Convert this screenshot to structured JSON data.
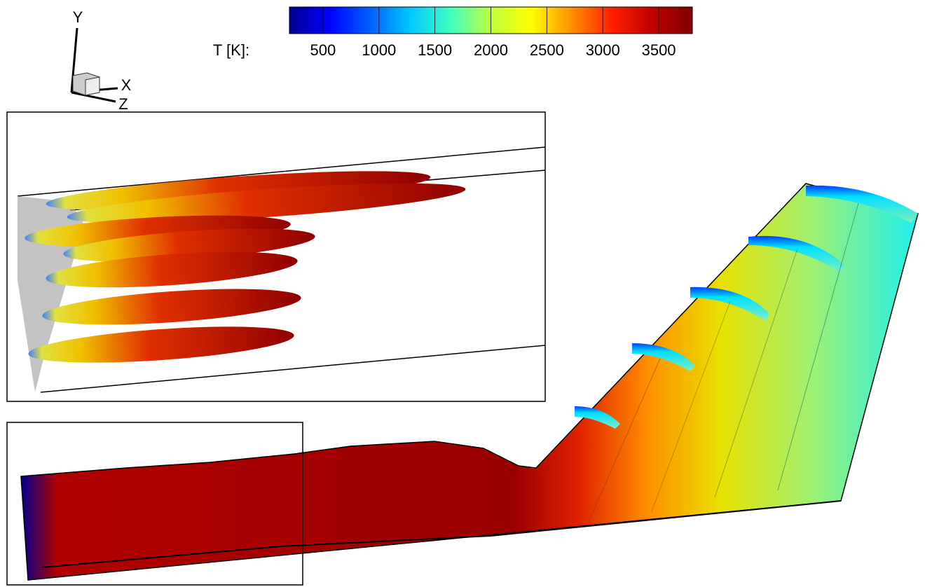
{
  "axes_triad": {
    "y": "Y",
    "x": "X",
    "z": "Z"
  },
  "colorbar": {
    "label": "T [K]:",
    "lim": [
      200,
      3800
    ],
    "ticks": [
      500,
      1000,
      1500,
      2000,
      2500,
      3000,
      3500
    ],
    "colors": [
      "#00008f",
      "#0000ff",
      "#0060ff",
      "#00c8ff",
      "#40ffc0",
      "#c0ff40",
      "#ffff00",
      "#ff9000",
      "#ff2000",
      "#c00000",
      "#800000"
    ]
  }
}
